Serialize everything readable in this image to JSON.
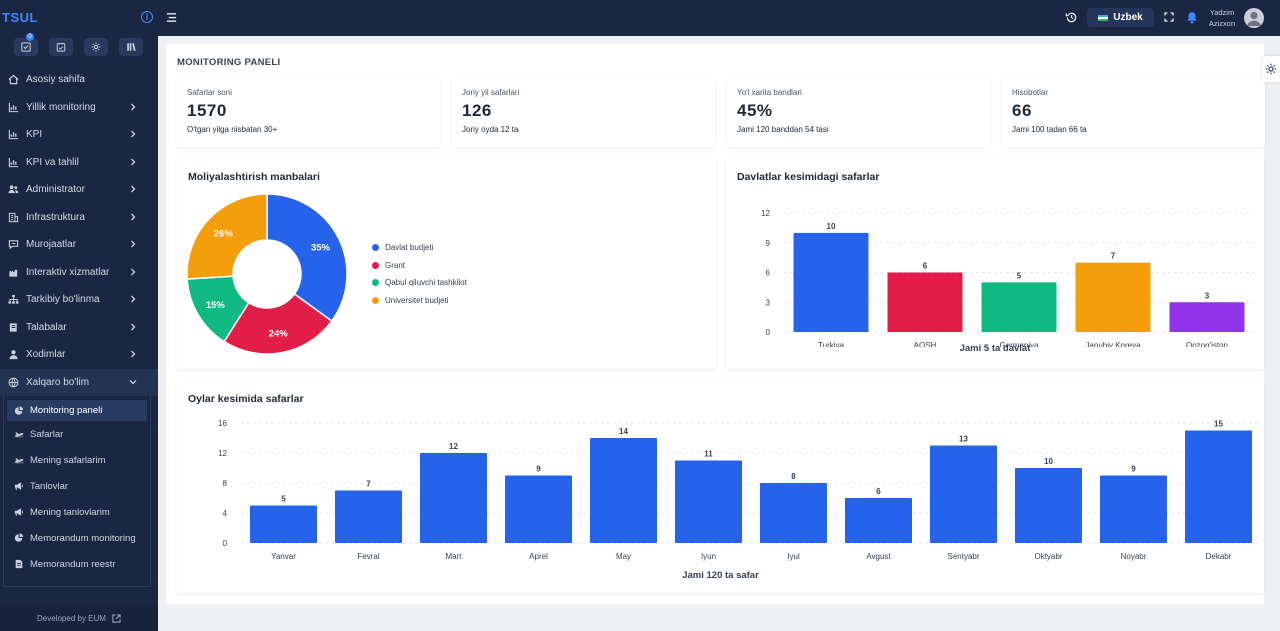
{
  "app": {
    "title": "TSUL",
    "developed_by": "Developed by EUM"
  },
  "quick_actions": [
    {
      "icon": "inbox-icon",
      "badge": "0"
    },
    {
      "icon": "clipboard-icon",
      "badge": ""
    },
    {
      "icon": "gear-icon",
      "badge": ""
    },
    {
      "icon": "library-icon",
      "badge": ""
    }
  ],
  "sidebar": {
    "items": [
      {
        "label": "Asosiy sahifa",
        "icon": "home-icon",
        "chevron": false
      },
      {
        "label": "Yillik monitoring",
        "icon": "chart-icon",
        "chevron": true
      },
      {
        "label": "KPI",
        "icon": "chart-icon",
        "chevron": true
      },
      {
        "label": "KPI va tahlil",
        "icon": "chart-icon",
        "chevron": true
      },
      {
        "label": "Administrator",
        "icon": "users-icon",
        "chevron": true
      },
      {
        "label": "Infrastruktura",
        "icon": "building-icon",
        "chevron": true
      },
      {
        "label": "Murojaatlar",
        "icon": "message-icon",
        "chevron": true
      },
      {
        "label": "Interaktiv xizmatlar",
        "icon": "service-icon",
        "chevron": true
      },
      {
        "label": "Tarkibiy bo'linma",
        "icon": "sitemap-icon",
        "chevron": true
      },
      {
        "label": "Talabalar",
        "icon": "student-icon",
        "chevron": true
      },
      {
        "label": "Xodimlar",
        "icon": "user-icon",
        "chevron": true
      },
      {
        "label": "Xalqaro bo'lim",
        "icon": "globe-icon",
        "chevron": true
      }
    ],
    "sub_items": [
      {
        "label": "Monitoring paneli",
        "icon": "pie-icon",
        "active": true
      },
      {
        "label": "Safarlar",
        "icon": "plane-icon",
        "active": false
      },
      {
        "label": "Mening safarlarim",
        "icon": "plane-icon",
        "active": false
      },
      {
        "label": "Tanlovlar",
        "icon": "megaphone-icon",
        "active": false
      },
      {
        "label": "Mening tanlovlarim",
        "icon": "megaphone-icon",
        "active": false
      },
      {
        "label": "Memorandum monitoring",
        "icon": "pie-icon",
        "active": false
      },
      {
        "label": "Memorandum reestr",
        "icon": "document-icon",
        "active": false
      }
    ]
  },
  "topbar": {
    "language": "Uzbek",
    "user_first": "Yadzim",
    "user_last": "Azizxon"
  },
  "page": {
    "title": "MONITORING PANELI"
  },
  "stats": [
    {
      "label": "Safarlar soni",
      "value": "1570",
      "sub": "O'tgan yilga nisbatan 30+"
    },
    {
      "label": "Joriy yil safarlari",
      "value": "126",
      "sub": "Joriy oyda 12 ta"
    },
    {
      "label": "Yo'l xarita bandlari",
      "value": "45%",
      "sub": "Jami 120 banddan 54 tasi"
    },
    {
      "label": "Hisobotlar",
      "value": "66",
      "sub": "Jami 100 tadan 66 ta"
    }
  ],
  "chart_data": [
    {
      "type": "pie",
      "title": "Moliyalashtirish manbalari",
      "categories": [
        "Davlat budjeti",
        "Grant",
        "Qabul qiluvchi tashkilot",
        "Universitet budjeti"
      ],
      "values": [
        35,
        24,
        15,
        26
      ],
      "labels": [
        "35%",
        "24%",
        "15%",
        "26%"
      ],
      "colors": [
        "#2563eb",
        "#e11d48",
        "#10b981",
        "#f59e0b"
      ],
      "legend": "right"
    },
    {
      "type": "bar",
      "title": "Davlatlar kesimidagi safarlar",
      "categories": [
        "Turkiya",
        "AQSH",
        "Germaniya",
        "Janubiy Koreya",
        "Qozog'iston"
      ],
      "values": [
        10,
        6,
        5,
        7,
        3
      ],
      "colors": [
        "#2563eb",
        "#e11d48",
        "#10b981",
        "#f59e0b",
        "#9333ea"
      ],
      "ylim": [
        0,
        12
      ],
      "yticks": [
        "0",
        "3",
        "6",
        "9",
        "12"
      ],
      "xlabel": "Jami 5 ta davlat",
      "grid": true
    },
    {
      "type": "bar",
      "title": "Oylar kesimida safarlar",
      "categories": [
        "Yanvar",
        "Fevral",
        "Mart",
        "Aprel",
        "May",
        "Iyun",
        "Iyul",
        "Avgust",
        "Sentyabr",
        "Oktyabr",
        "Noyabr",
        "Dekabr"
      ],
      "values": [
        5,
        7,
        12,
        9,
        14,
        11,
        8,
        6,
        13,
        10,
        9,
        15
      ],
      "colors": [
        "#2563eb"
      ],
      "ylim": [
        0,
        16
      ],
      "yticks": [
        "0",
        "4",
        "8",
        "12",
        "16"
      ],
      "xlabel": "Jami 120 ta safar",
      "grid": true
    }
  ]
}
